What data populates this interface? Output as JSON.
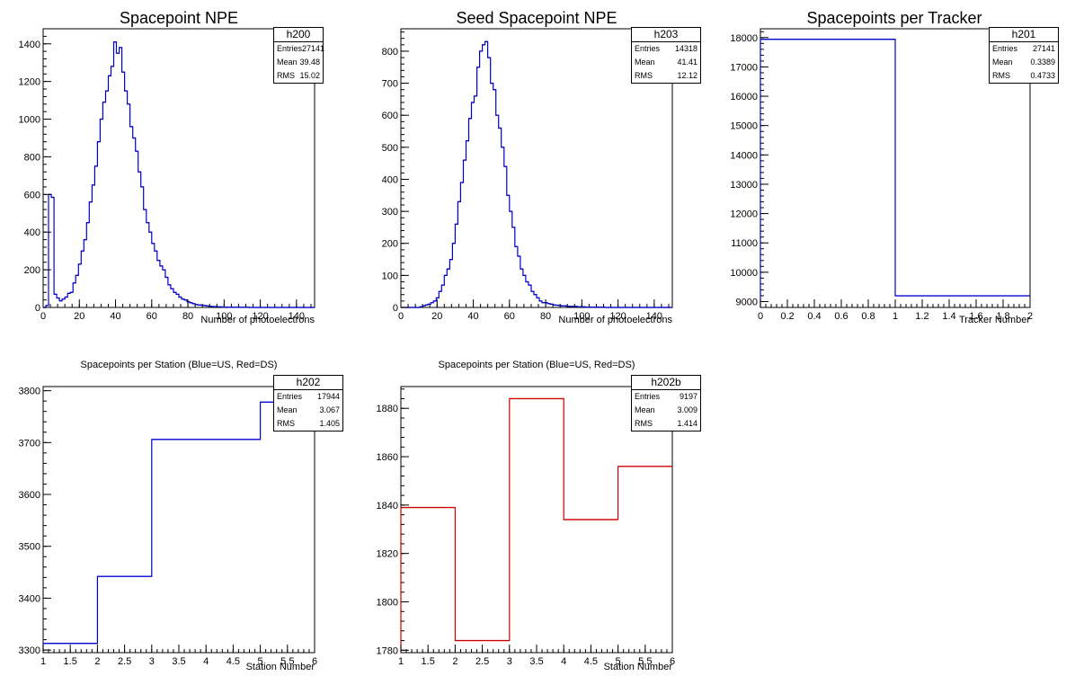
{
  "panels": [
    {
      "id": "h200",
      "title": "Spacepoint NPE",
      "title_size": "big",
      "hist_name": "h200",
      "stats": [
        [
          "Entries",
          "27141"
        ],
        [
          "Mean",
          "39.48"
        ],
        [
          "RMS",
          "15.02"
        ]
      ],
      "xlabel": "Number of photoelectrons",
      "ylabel": "",
      "color": "#0000cc"
    },
    {
      "id": "h203",
      "title": "Seed Spacepoint NPE",
      "title_size": "big",
      "hist_name": "h203",
      "stats": [
        [
          "Entries",
          "14318"
        ],
        [
          "Mean",
          "41.41"
        ],
        [
          "RMS",
          "12.12"
        ]
      ],
      "xlabel": "Number of photoelectrons",
      "ylabel": "",
      "color": "#0000cc"
    },
    {
      "id": "h201",
      "title": "Spacepoints per Tracker",
      "title_size": "big",
      "hist_name": "h201",
      "stats": [
        [
          "Entries",
          "27141"
        ],
        [
          "Mean",
          "0.3389"
        ],
        [
          "RMS",
          "0.4733"
        ]
      ],
      "xlabel": "Tracker Number",
      "ylabel": "",
      "color": "#0000cc"
    },
    {
      "id": "h202",
      "title": "Spacepoints per Station (Blue=US, Red=DS)",
      "title_size": "small",
      "hist_name": "h202",
      "stats": [
        [
          "Entries",
          "17944"
        ],
        [
          "Mean",
          "3.067"
        ],
        [
          "RMS",
          "1.405"
        ]
      ],
      "xlabel": "Station Number",
      "ylabel": "",
      "color": "#0000cc"
    },
    {
      "id": "h202b",
      "title": "Spacepoints per Station (Blue=US, Red=DS)",
      "title_size": "small",
      "hist_name": "h202b",
      "stats": [
        [
          "Entries",
          "9197"
        ],
        [
          "Mean",
          "3.009"
        ],
        [
          "RMS",
          "1.414"
        ]
      ],
      "xlabel": "Station Number",
      "ylabel": "",
      "color": "#cc0000"
    }
  ],
  "chart_data": [
    {
      "type": "bar",
      "name": "h200",
      "title": "Spacepoint NPE",
      "xlabel": "Number of photoelectrons",
      "ylabel": "",
      "xlim": [
        0,
        150
      ],
      "ylim": [
        0,
        1480
      ],
      "xticks": [
        0,
        20,
        40,
        60,
        80,
        100,
        120,
        140
      ],
      "yticks": [
        0,
        200,
        400,
        600,
        800,
        1000,
        1200,
        1400
      ],
      "bin_width": 1.5,
      "values": [
        0,
        10,
        600,
        585,
        70,
        50,
        35,
        45,
        55,
        75,
        80,
        130,
        170,
        230,
        300,
        360,
        450,
        560,
        650,
        750,
        880,
        1000,
        1090,
        1150,
        1230,
        1280,
        1410,
        1350,
        1380,
        1250,
        1150,
        1080,
        960,
        900,
        830,
        720,
        640,
        520,
        450,
        400,
        340,
        300,
        250,
        220,
        200,
        160,
        120,
        100,
        80,
        70,
        55,
        45,
        40,
        30,
        25,
        20,
        15,
        13,
        12,
        10,
        8,
        6,
        5,
        4,
        3,
        3,
        2,
        2,
        1,
        1,
        1,
        1,
        1,
        1,
        1,
        1,
        0,
        0,
        0,
        0,
        0,
        0,
        0,
        0,
        0,
        0,
        0,
        0,
        0,
        0,
        0,
        0,
        0,
        0,
        0,
        0,
        0,
        0,
        0,
        0
      ],
      "stats": {
        "Entries": 27141,
        "Mean": 39.48,
        "RMS": 15.02
      }
    },
    {
      "type": "bar",
      "name": "h203",
      "title": "Seed Spacepoint NPE",
      "xlabel": "Number of photoelectrons",
      "ylabel": "",
      "xlim": [
        0,
        150
      ],
      "ylim": [
        0,
        870
      ],
      "xticks": [
        0,
        20,
        40,
        60,
        80,
        100,
        120,
        140
      ],
      "yticks": [
        0,
        100,
        200,
        300,
        400,
        500,
        600,
        700,
        800
      ],
      "bin_width": 1.5,
      "values": [
        0,
        0,
        0,
        0,
        0,
        0,
        0,
        2,
        5,
        8,
        10,
        15,
        20,
        30,
        50,
        70,
        100,
        120,
        150,
        200,
        260,
        330,
        390,
        460,
        520,
        590,
        640,
        660,
        750,
        800,
        820,
        830,
        780,
        700,
        680,
        600,
        560,
        500,
        440,
        350,
        300,
        250,
        190,
        160,
        120,
        100,
        80,
        70,
        50,
        40,
        30,
        20,
        15,
        15,
        12,
        10,
        8,
        7,
        6,
        5,
        5,
        4,
        3,
        3,
        3,
        2,
        2,
        2,
        1,
        1,
        1,
        1,
        1,
        1,
        1,
        0,
        0,
        0,
        0,
        0,
        0,
        0,
        0,
        0,
        0,
        0,
        0,
        0,
        0,
        0,
        0,
        0,
        0,
        0,
        0,
        0,
        0,
        0,
        0,
        0
      ],
      "stats": {
        "Entries": 14318,
        "Mean": 41.41,
        "RMS": 12.12
      }
    },
    {
      "type": "bar",
      "name": "h201",
      "title": "Spacepoints per Tracker",
      "xlabel": "Tracker Number",
      "ylabel": "",
      "xlim": [
        0,
        2
      ],
      "ylim": [
        8800,
        18300
      ],
      "xticks": [
        0,
        0.2,
        0.4,
        0.6,
        0.8,
        1,
        1.2,
        1.4,
        1.6,
        1.8,
        2
      ],
      "yticks": [
        9000,
        10000,
        11000,
        12000,
        13000,
        14000,
        15000,
        16000,
        17000,
        18000
      ],
      "bin_width": 1,
      "values": [
        17944,
        9197
      ],
      "stats": {
        "Entries": 27141,
        "Mean": 0.3389,
        "RMS": 0.4733
      }
    },
    {
      "type": "bar",
      "name": "h202",
      "title": "Spacepoints per Station (Blue=US, Red=DS)",
      "xlabel": "Station Number",
      "ylabel": "",
      "xlim": [
        1,
        6
      ],
      "ylim": [
        3295,
        3808
      ],
      "xticks": [
        1,
        1.5,
        2,
        2.5,
        3,
        3.5,
        4,
        4.5,
        5,
        5.5,
        6
      ],
      "yticks": [
        3300,
        3400,
        3500,
        3600,
        3700,
        3800
      ],
      "bin_width": 1,
      "values": [
        3313,
        3442,
        3706,
        3706,
        3778
      ],
      "stats": {
        "Entries": 17944,
        "Mean": 3.067,
        "RMS": 1.405
      }
    },
    {
      "type": "bar",
      "name": "h202b",
      "title": "Spacepoints per Station (Blue=US, Red=DS)",
      "xlabel": "Station Number",
      "ylabel": "",
      "xlim": [
        1,
        6
      ],
      "ylim": [
        1779,
        1889
      ],
      "xticks": [
        1,
        1.5,
        2,
        2.5,
        3,
        3.5,
        4,
        4.5,
        5,
        5.5,
        6
      ],
      "yticks": [
        1780,
        1800,
        1820,
        1840,
        1860,
        1880
      ],
      "bin_width": 1,
      "values": [
        1839,
        1784,
        1884,
        1834,
        1856
      ],
      "stats": {
        "Entries": 9197,
        "Mean": 3.009,
        "RMS": 1.414
      }
    }
  ]
}
